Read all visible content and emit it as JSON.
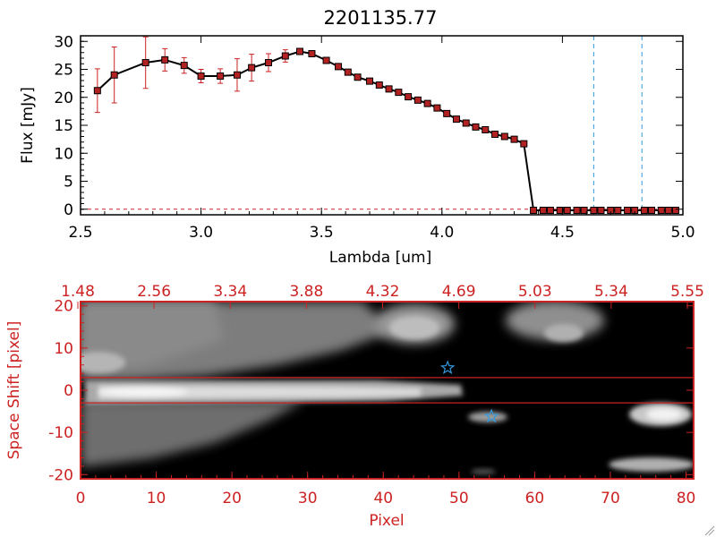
{
  "chart_data": [
    {
      "type": "line",
      "title": "2201135.77",
      "xlabel": "Lambda [um]",
      "ylabel": "Flux [mJy]",
      "xlim": [
        2.5,
        5.0
      ],
      "ylim": [
        -1,
        31
      ],
      "x_ticks": [
        "2.5",
        "3.0",
        "3.5",
        "4.0",
        "4.5",
        "5.0"
      ],
      "y_ticks": [
        "0",
        "5",
        "10",
        "15",
        "20",
        "25",
        "30"
      ],
      "grid": false,
      "reference_lines_x": [
        4.63,
        4.83
      ],
      "colors": {
        "line": "#000000",
        "marker": "#b22222",
        "error": "#cc2222",
        "ref_line": "#3399dd"
      },
      "series": [
        {
          "x": [
            2.57,
            2.64,
            2.77,
            2.85,
            2.93,
            3.0,
            3.08,
            3.15,
            3.21,
            3.28,
            3.35,
            3.41,
            3.46,
            3.52,
            3.57,
            3.61,
            3.65,
            3.7,
            3.74,
            3.78,
            3.82,
            3.86,
            3.9,
            3.94,
            3.98,
            4.02,
            4.06,
            4.1,
            4.14,
            4.18,
            4.22,
            4.26,
            4.3,
            4.34,
            4.38,
            4.42,
            4.45,
            4.49,
            4.52,
            4.56,
            4.59,
            4.63,
            4.66,
            4.7,
            4.73,
            4.77,
            4.8,
            4.84,
            4.87,
            4.91,
            4.94,
            4.97
          ],
          "y": [
            21.2,
            24.0,
            26.2,
            26.7,
            25.7,
            23.8,
            23.8,
            24.0,
            25.3,
            26.2,
            27.4,
            28.2,
            27.8,
            26.6,
            25.5,
            24.5,
            23.6,
            22.9,
            22.2,
            21.5,
            20.9,
            20.1,
            19.5,
            18.9,
            18.1,
            17.1,
            16.1,
            15.4,
            14.7,
            14.2,
            13.4,
            13.0,
            12.5,
            11.7,
            -0.2,
            -0.2,
            -0.2,
            -0.2,
            -0.2,
            -0.2,
            -0.2,
            -0.2,
            -0.2,
            -0.2,
            -0.2,
            -0.2,
            -0.2,
            -0.2,
            -0.2,
            -0.2,
            -0.2,
            -0.2
          ],
          "err": [
            3.9,
            5.0,
            4.6,
            2.0,
            1.4,
            1.2,
            1.3,
            2.9,
            2.4,
            1.6,
            1.1,
            0.5,
            0.4,
            0.4,
            0.4,
            0.4,
            0.4,
            0.4,
            0.4,
            0.4,
            0.4,
            0.4,
            0.4,
            0.4,
            0.4,
            0.4,
            0.4,
            0.4,
            0.4,
            0.4,
            0.4,
            0.4,
            0.4,
            0.4,
            0.2,
            0.2,
            0.2,
            0.2,
            0.2,
            0.2,
            0.2,
            0.2,
            0.2,
            0.2,
            0.2,
            0.2,
            0.2,
            0.2,
            0.2,
            0.2,
            0.2,
            0.2
          ]
        }
      ]
    },
    {
      "type": "heatmap",
      "xlabel": "Pixel",
      "ylabel": "Space Shift [pixel]",
      "xlim": [
        0,
        81
      ],
      "ylim": [
        -21,
        21
      ],
      "x_ticks": [
        "0",
        "10",
        "20",
        "30",
        "40",
        "50",
        "60",
        "70",
        "80"
      ],
      "y_ticks": [
        "-20",
        "-10",
        "0",
        "10",
        "20"
      ],
      "top_ticks": [
        "1.48",
        "2.56",
        "3.34",
        "3.88",
        "4.32",
        "4.69",
        "5.03",
        "5.34",
        "5.55"
      ],
      "horizontal_lines_y": [
        3,
        -3
      ],
      "markers": [
        {
          "shape": "star",
          "x": 48.5,
          "y": 5.3
        },
        {
          "shape": "star",
          "x": 54.3,
          "y": -6.2
        }
      ],
      "colors": {
        "axis": "#cc2222",
        "marker": "#3399dd",
        "background": "#000000"
      }
    }
  ]
}
